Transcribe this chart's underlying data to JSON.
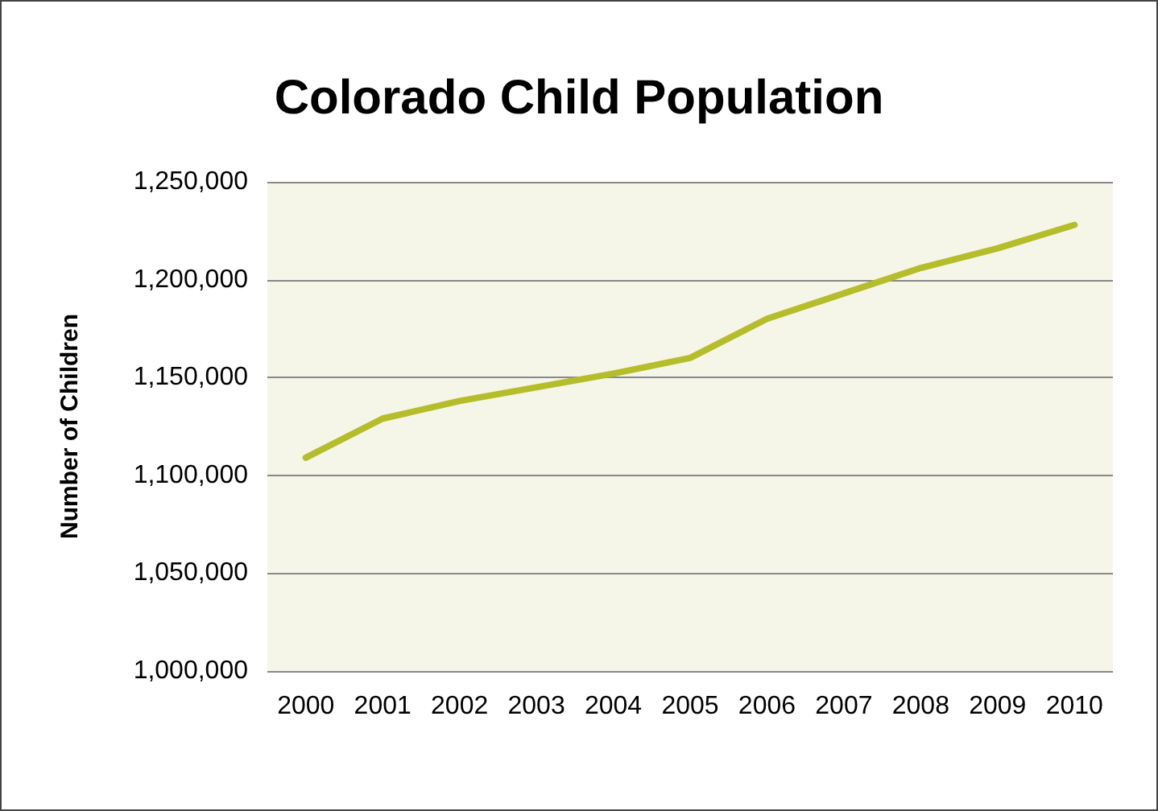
{
  "chart_data": {
    "type": "line",
    "title": "Colorado Child Population",
    "ylabel": "Number of Children",
    "categories": [
      "2000",
      "2001",
      "2002",
      "2003",
      "2004",
      "2005",
      "2006",
      "2007",
      "2008",
      "2009",
      "2010"
    ],
    "series": [
      {
        "color": "#b5bd2a",
        "values": [
          1109000,
          1129000,
          1138000,
          1145000,
          1152000,
          1160000,
          1180000,
          1193000,
          1206000,
          1216000,
          1228000
        ]
      }
    ],
    "ylim": [
      1000000,
      1250000
    ],
    "yticks": [
      {
        "value": 1000000,
        "label": "1,000,000"
      },
      {
        "value": 1050000,
        "label": "1,050,000"
      },
      {
        "value": 1100000,
        "label": "1,100,000"
      },
      {
        "value": 1150000,
        "label": "1,150,000"
      },
      {
        "value": 1200000,
        "label": "1,200,000"
      },
      {
        "value": 1250000,
        "label": "1,250,000"
      }
    ],
    "grid": "y",
    "marker": "none",
    "line_style": "solid"
  }
}
